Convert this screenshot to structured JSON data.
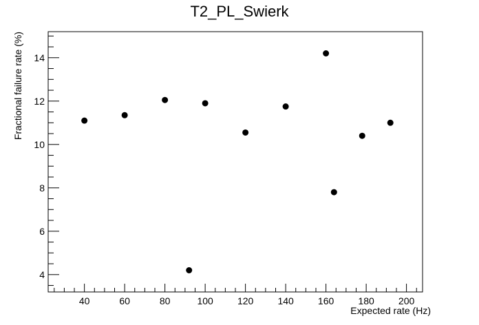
{
  "chart_data": {
    "type": "scatter",
    "title": "T2_PL_Swierk",
    "xlabel": "Expected rate (Hz)",
    "ylabel": "Fractional failure rate (%)",
    "xlim": [
      22,
      208
    ],
    "ylim": [
      3.2,
      15.2
    ],
    "x_major_ticks": [
      40,
      60,
      80,
      100,
      120,
      140,
      160,
      180,
      200
    ],
    "x_minor_step": 5,
    "y_major_ticks": [
      4,
      6,
      8,
      10,
      12,
      14
    ],
    "y_minor_step": 0.5,
    "grid": false,
    "marker_color": "#000000",
    "x": [
      40,
      60,
      80,
      92,
      100,
      120,
      140,
      160,
      164,
      178,
      192
    ],
    "y": [
      11.1,
      11.35,
      12.05,
      4.2,
      11.9,
      10.55,
      11.75,
      14.2,
      7.8,
      10.4,
      11.0
    ]
  }
}
